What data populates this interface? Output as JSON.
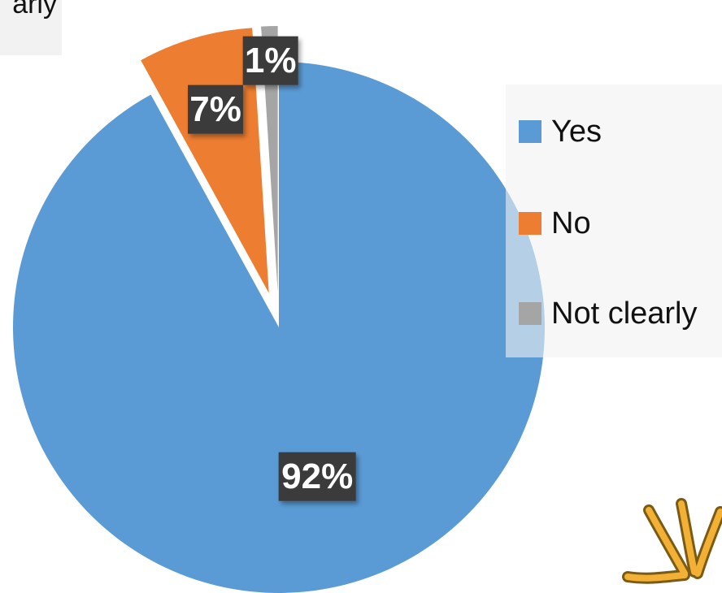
{
  "top_text": "arly",
  "chart_data": {
    "type": "pie",
    "categories": [
      "Yes",
      "No",
      "Not clearly"
    ],
    "values": [
      92,
      7,
      1
    ],
    "data_labels": [
      "92%",
      "7%",
      "1%"
    ],
    "colors": [
      "#5b9bd5",
      "#ed7d31",
      "#a5a5a5"
    ],
    "legend_position": "right",
    "exploded": true
  },
  "legend": {
    "items": [
      {
        "label": "Yes",
        "color": "#5b9bd5"
      },
      {
        "label": "No",
        "color": "#ed7d31"
      },
      {
        "label": "Not clearly",
        "color": "#a5a5a5"
      }
    ]
  },
  "decoration": {
    "color": "#f2b134",
    "icon": "yellow-lines-decoration-icon"
  }
}
